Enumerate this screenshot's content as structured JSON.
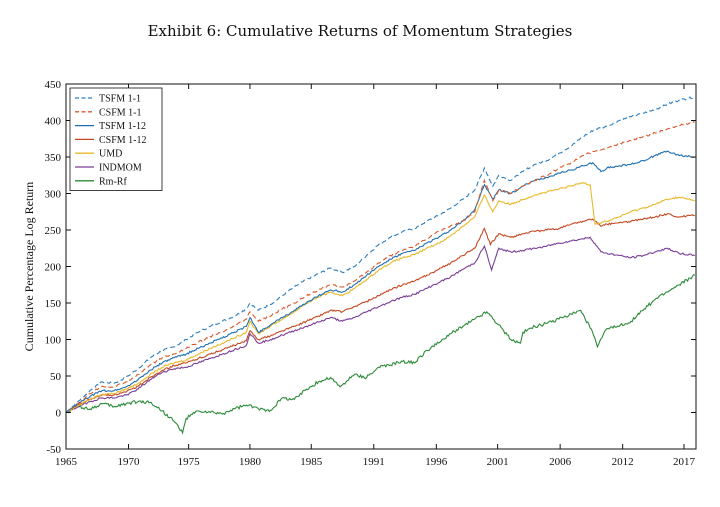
{
  "chart_data": {
    "type": "line",
    "title": "Exhibit 6: Cumulative Returns of Momentum Strategies",
    "xlabel": "",
    "ylabel": "Cumulative Percentage Log Return",
    "xlim": [
      1965,
      2017.4
    ],
    "ylim": [
      -50,
      450
    ],
    "x_tick_labels": [
      "1965",
      "1970",
      "1975",
      "1980",
      "1985",
      "1991",
      "1996",
      "2001",
      "2006",
      "2012",
      "2017"
    ],
    "x_tick_values": [
      1965,
      1970.2,
      1975.2,
      1980.3,
      1985.4,
      1990.6,
      1995.8,
      2000.9,
      2006.1,
      2011.3,
      2016.4
    ],
    "y_ticks": [
      -50,
      0,
      50,
      100,
      150,
      200,
      250,
      300,
      350,
      400,
      450
    ],
    "legend_position": "top-left",
    "series": [
      {
        "name": "TSFM 1-1",
        "color": "#2f7fbf",
        "dash": "dashed",
        "x": [
          1965,
          1966,
          1967,
          1968,
          1969,
          1970,
          1971,
          1972,
          1973,
          1974,
          1975,
          1976,
          1977,
          1978,
          1979,
          1980,
          1980.3,
          1981,
          1982,
          1983,
          1984,
          1985,
          1986,
          1987,
          1988,
          1989,
          1990,
          1991,
          1992,
          1993,
          1994,
          1995,
          1996,
          1997,
          1998,
          1999,
          1999.8,
          2000.5,
          2001,
          2002,
          2003,
          2004,
          2005,
          2006,
          2007,
          2008,
          2009,
          2010,
          2011,
          2012,
          2013,
          2014,
          2015,
          2016,
          2017.3
        ],
        "values": [
          0,
          15,
          30,
          42,
          40,
          48,
          60,
          75,
          85,
          90,
          100,
          110,
          118,
          125,
          132,
          142,
          150,
          140,
          148,
          160,
          172,
          182,
          190,
          198,
          192,
          200,
          215,
          230,
          240,
          248,
          252,
          262,
          270,
          280,
          292,
          305,
          335,
          310,
          325,
          318,
          330,
          340,
          345,
          355,
          365,
          378,
          388,
          392,
          400,
          405,
          410,
          415,
          422,
          428,
          432
        ]
      },
      {
        "name": "CSFM 1-1",
        "color": "#d95a2b",
        "dash": "dashed",
        "x": [
          1965,
          1966,
          1967,
          1968,
          1969,
          1970,
          1971,
          1972,
          1973,
          1974,
          1975,
          1976,
          1977,
          1978,
          1979,
          1980,
          1980.3,
          1981,
          1982,
          1983,
          1984,
          1985,
          1986,
          1987,
          1988,
          1989,
          1990,
          1991,
          1992,
          1993,
          1994,
          1995,
          1996,
          1997,
          1998,
          1999,
          1999.8,
          2000.5,
          2001,
          2002,
          2003,
          2004,
          2005,
          2006,
          2007,
          2008,
          2009,
          2010,
          2011,
          2012,
          2013,
          2014,
          2015,
          2016,
          2017.3
        ],
        "values": [
          0,
          12,
          26,
          36,
          35,
          42,
          52,
          65,
          75,
          80,
          88,
          96,
          104,
          110,
          118,
          128,
          138,
          125,
          132,
          142,
          150,
          160,
          168,
          175,
          172,
          180,
          192,
          205,
          215,
          222,
          228,
          238,
          248,
          256,
          262,
          275,
          318,
          290,
          305,
          300,
          310,
          318,
          325,
          335,
          342,
          352,
          358,
          362,
          368,
          372,
          378,
          383,
          388,
          393,
          398
        ]
      },
      {
        "name": "TSFM 1-12",
        "color": "#1f6fb2",
        "dash": "solid",
        "x": [
          1965,
          1966,
          1967,
          1968,
          1969,
          1970,
          1971,
          1972,
          1973,
          1974,
          1975,
          1976,
          1977,
          1978,
          1979,
          1980,
          1980.3,
          1981,
          1982,
          1983,
          1984,
          1985,
          1986,
          1987,
          1988,
          1989,
          1990,
          1991,
          1992,
          1993,
          1994,
          1995,
          1996,
          1997,
          1998,
          1999,
          1999.8,
          2000.5,
          2001,
          2002,
          2003,
          2004,
          2005,
          2006,
          2007,
          2008,
          2008.8,
          2009.5,
          2010,
          2011,
          2012,
          2013,
          2014,
          2015,
          2016,
          2017.3
        ],
        "values": [
          0,
          12,
          22,
          30,
          30,
          35,
          45,
          58,
          68,
          75,
          80,
          88,
          95,
          102,
          110,
          118,
          130,
          110,
          120,
          130,
          140,
          150,
          160,
          168,
          165,
          175,
          188,
          200,
          210,
          218,
          222,
          232,
          240,
          250,
          262,
          278,
          312,
          292,
          305,
          300,
          310,
          318,
          322,
          328,
          332,
          338,
          342,
          330,
          335,
          338,
          340,
          345,
          352,
          358,
          352,
          350
        ]
      },
      {
        "name": "CSFM 1-12",
        "color": "#c44a23",
        "dash": "solid",
        "x": [
          1965,
          1966,
          1967,
          1968,
          1969,
          1970,
          1971,
          1972,
          1973,
          1974,
          1975,
          1976,
          1977,
          1978,
          1979,
          1980,
          1980.3,
          1981,
          1982,
          1983,
          1984,
          1985,
          1986,
          1987,
          1988,
          1989,
          1990,
          1991,
          1992,
          1993,
          1994,
          1995,
          1996,
          1997,
          1998,
          1999,
          1999.8,
          2000.3,
          2001,
          2002,
          2003,
          2004,
          2005,
          2006,
          2007,
          2008,
          2008.8,
          2009.5,
          2010,
          2011,
          2012,
          2013,
          2014,
          2015,
          2016,
          2017.3
        ],
        "values": [
          0,
          10,
          18,
          24,
          24,
          28,
          36,
          48,
          58,
          64,
          68,
          74,
          80,
          86,
          92,
          98,
          112,
          100,
          105,
          112,
          118,
          125,
          132,
          140,
          138,
          145,
          152,
          160,
          168,
          175,
          180,
          188,
          196,
          205,
          215,
          225,
          252,
          230,
          245,
          240,
          245,
          248,
          250,
          252,
          258,
          262,
          265,
          255,
          258,
          260,
          262,
          265,
          268,
          272,
          268,
          270
        ]
      },
      {
        "name": "UMD",
        "color": "#e8b92c",
        "dash": "solid",
        "x": [
          1965,
          1966,
          1967,
          1968,
          1969,
          1970,
          1971,
          1972,
          1973,
          1974,
          1975,
          1976,
          1977,
          1978,
          1979,
          1980,
          1980.3,
          1981,
          1982,
          1983,
          1984,
          1985,
          1986,
          1987,
          1988,
          1989,
          1990,
          1991,
          1992,
          1993,
          1994,
          1995,
          1996,
          1997,
          1998,
          1999,
          1999.8,
          2000.5,
          2001,
          2002,
          2003,
          2004,
          2005,
          2006,
          2007,
          2008,
          2008.6,
          2009.0,
          2010,
          2011,
          2012,
          2013,
          2014,
          2015,
          2016,
          2017.3
        ],
        "values": [
          0,
          10,
          18,
          25,
          26,
          32,
          40,
          52,
          62,
          68,
          72,
          80,
          88,
          95,
          102,
          110,
          125,
          108,
          118,
          128,
          138,
          150,
          158,
          165,
          160,
          170,
          182,
          195,
          205,
          212,
          216,
          225,
          232,
          242,
          255,
          268,
          298,
          275,
          290,
          285,
          292,
          298,
          302,
          306,
          310,
          315,
          312,
          258,
          262,
          268,
          275,
          280,
          285,
          292,
          295,
          290
        ]
      },
      {
        "name": "INDMOM",
        "color": "#7b3f98",
        "dash": "solid",
        "x": [
          1965,
          1966,
          1967,
          1968,
          1969,
          1970,
          1971,
          1972,
          1973,
          1974,
          1975,
          1976,
          1977,
          1978,
          1979,
          1980,
          1980.3,
          1981,
          1982,
          1983,
          1984,
          1985,
          1986,
          1987,
          1988,
          1989,
          1990,
          1991,
          1992,
          1993,
          1994,
          1995,
          1996,
          1997,
          1998,
          1999,
          1999.8,
          2000.4,
          2001,
          2002,
          2003,
          2004,
          2005,
          2006,
          2007,
          2008,
          2008.6,
          2009.5,
          2010,
          2011,
          2012,
          2013,
          2014,
          2015,
          2016,
          2017.3
        ],
        "values": [
          0,
          8,
          15,
          20,
          20,
          24,
          32,
          45,
          55,
          60,
          62,
          68,
          74,
          80,
          86,
          92,
          108,
          95,
          100,
          106,
          112,
          118,
          124,
          130,
          125,
          130,
          138,
          145,
          152,
          158,
          162,
          170,
          178,
          186,
          196,
          205,
          228,
          195,
          225,
          220,
          222,
          225,
          228,
          232,
          235,
          238,
          240,
          220,
          218,
          215,
          212,
          215,
          220,
          225,
          218,
          215
        ]
      },
      {
        "name": "Rm-Rf",
        "color": "#2e8b3a",
        "dash": "solid",
        "x": [
          1965,
          1966,
          1967,
          1968,
          1969,
          1970,
          1971,
          1972,
          1973,
          1974,
          1974.7,
          1975,
          1976,
          1977,
          1978,
          1979,
          1980,
          1981,
          1982,
          1983,
          1984,
          1985,
          1986,
          1987,
          1987.8,
          1988,
          1989,
          1990,
          1991,
          1992,
          1993,
          1994,
          1995,
          1996,
          1997,
          1998,
          1999,
          2000,
          2001,
          2002,
          2002.8,
          2003,
          2004,
          2005,
          2006,
          2007,
          2007.8,
          2008.8,
          2009.2,
          2010,
          2011,
          2012,
          2013,
          2014,
          2015,
          2016,
          2017.3
        ],
        "values": [
          0,
          8,
          5,
          12,
          8,
          12,
          15,
          14,
          2,
          -12,
          -28,
          -8,
          2,
          0,
          -2,
          5,
          10,
          5,
          3,
          20,
          18,
          32,
          42,
          48,
          35,
          38,
          52,
          48,
          62,
          65,
          70,
          68,
          85,
          95,
          108,
          118,
          128,
          138,
          120,
          100,
          95,
          110,
          118,
          122,
          128,
          135,
          140,
          110,
          90,
          115,
          118,
          125,
          140,
          155,
          165,
          175,
          188
        ]
      }
    ]
  }
}
